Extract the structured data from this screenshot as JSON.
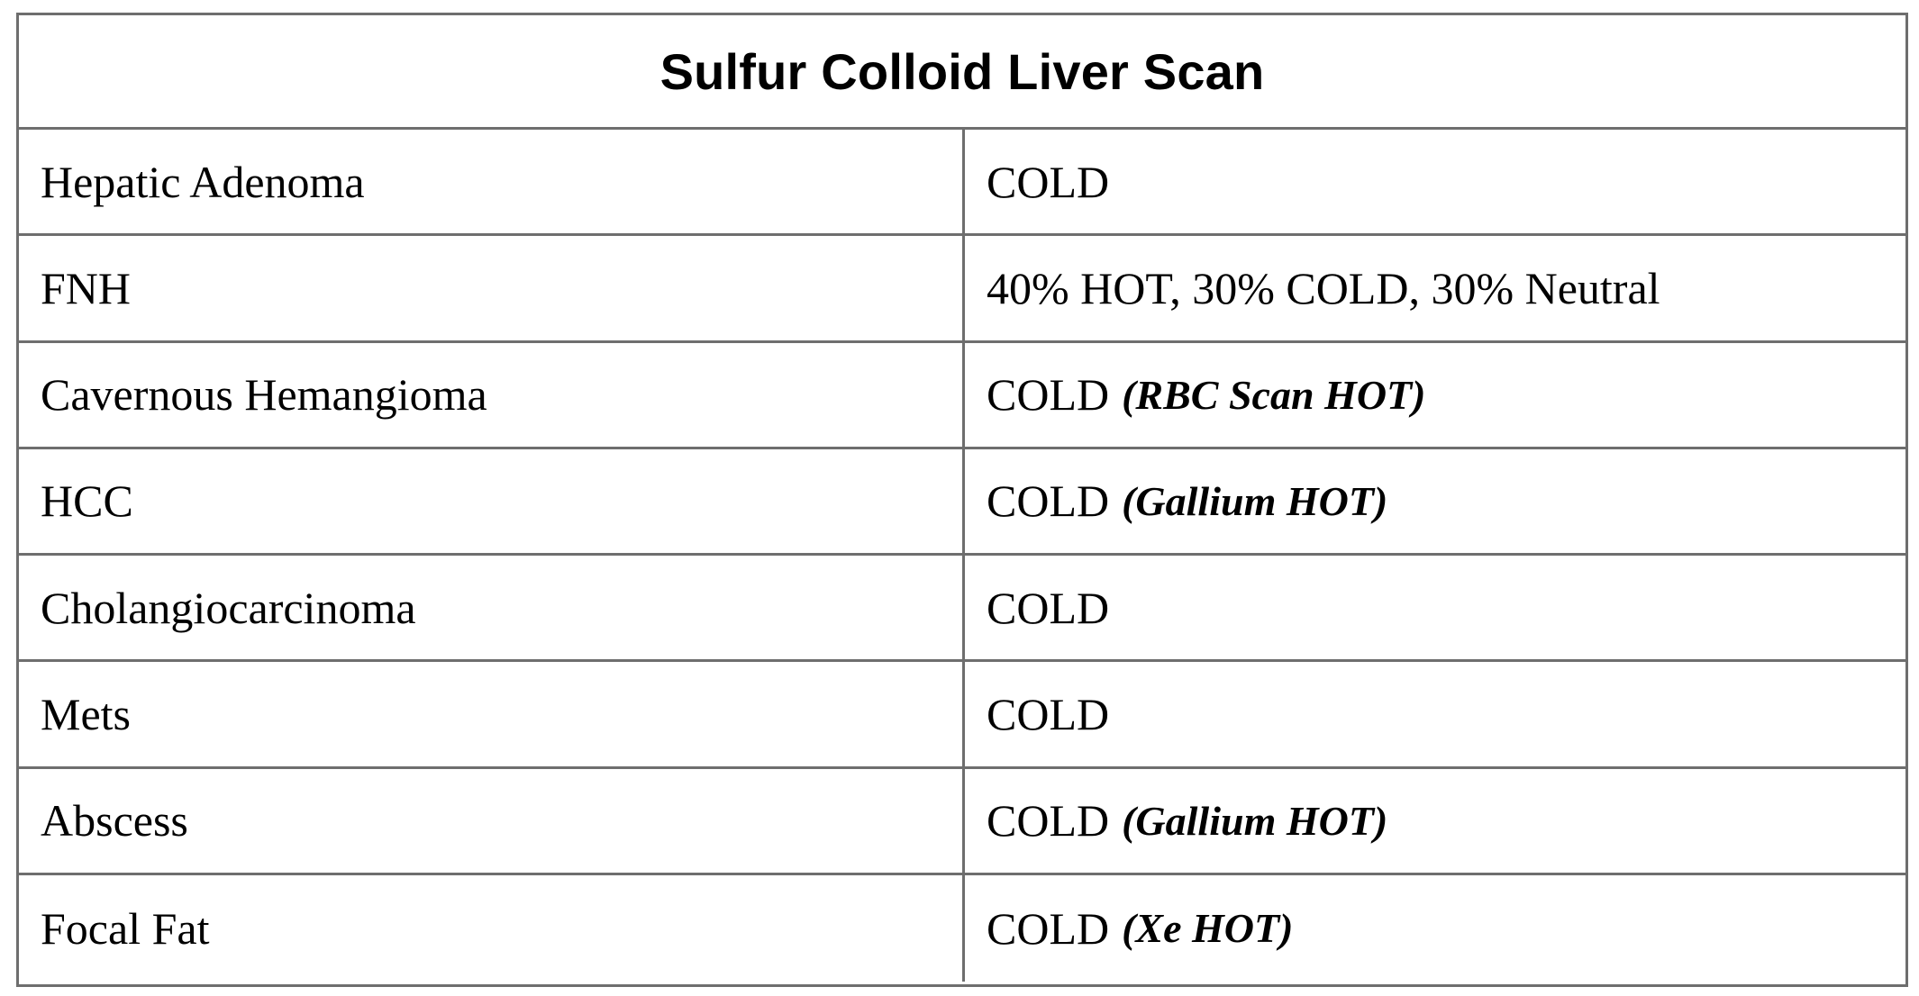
{
  "table": {
    "title": "Sulfur Colloid Liver Scan",
    "rows": [
      {
        "lesion": "Hepatic Adenoma",
        "result": "COLD",
        "note": ""
      },
      {
        "lesion": "FNH",
        "result": "40% HOT, 30% COLD, 30% Neutral",
        "note": ""
      },
      {
        "lesion": "Cavernous Hemangioma",
        "result": "COLD",
        "note": "(RBC Scan HOT)"
      },
      {
        "lesion": "HCC",
        "result": "COLD",
        "note": "(Gallium HOT)"
      },
      {
        "lesion": "Cholangiocarcinoma",
        "result": "COLD",
        "note": ""
      },
      {
        "lesion": "Mets",
        "result": "COLD",
        "note": ""
      },
      {
        "lesion": "Abscess",
        "result": "COLD",
        "note": "(Gallium HOT)"
      },
      {
        "lesion": "Focal Fat",
        "result": "COLD",
        "note": "(Xe HOT)"
      }
    ]
  }
}
